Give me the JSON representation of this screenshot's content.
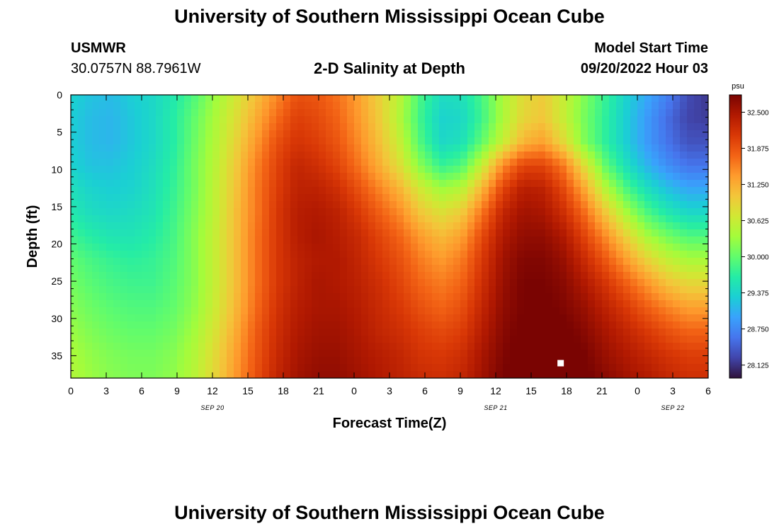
{
  "page": {
    "title_top": "University of Southern Mississippi Ocean Cube",
    "title_bottom": "University of Southern Mississippi Ocean Cube",
    "station_name": "USMWR",
    "station_coords": "30.0757N  88.7961W",
    "model_start_label": "Model Start Time",
    "model_start_value": "09/20/2022 Hour 03"
  },
  "chart_data": {
    "type": "heatmap",
    "title": "2-D Salinity at Depth",
    "xlabel": "Forecast Time(Z)",
    "ylabel": "Depth (ft)",
    "x_tick_labels": [
      "0",
      "3",
      "6",
      "9",
      "12",
      "15",
      "18",
      "21",
      "0",
      "3",
      "6",
      "9",
      "12",
      "15",
      "18",
      "21",
      "0",
      "3",
      "6"
    ],
    "x_date_labels": [
      {
        "label": "SEP 20",
        "at_tick": 4
      },
      {
        "label": "SEP 21",
        "at_tick": 12
      },
      {
        "label": "SEP 22",
        "at_tick": 17
      }
    ],
    "x_range_hours": [
      0,
      54
    ],
    "y_ticks": [
      0,
      5,
      10,
      15,
      20,
      25,
      30,
      35
    ],
    "y_range_ft": [
      0,
      38
    ],
    "y_inverted": true,
    "colorbar": {
      "unit": "psu",
      "tick_labels": [
        "32.500",
        "31.875",
        "31.250",
        "30.625",
        "30.000",
        "29.375",
        "28.750",
        "28.125"
      ],
      "range": [
        27.9,
        32.8
      ],
      "colors": [
        "#30123b",
        "#4145ab",
        "#4675ed",
        "#39a2fc",
        "#1bcfd4",
        "#24eca6",
        "#61fc6c",
        "#a4fc3b",
        "#d1e834",
        "#f3c63a",
        "#fe9b2d",
        "#f36315",
        "#d93806",
        "#b11901",
        "#7a0402"
      ]
    },
    "marker": {
      "x_hour": 41.5,
      "depth_ft": 36,
      "color": "#ffffff"
    },
    "grid": false,
    "salinity_psu": [
      [
        29.35,
        29.2,
        29.15,
        29.3,
        29.4,
        29.6,
        29.9,
        30.3,
        30.7,
        31.1,
        31.5,
        31.9,
        31.85,
        31.65,
        31.35,
        30.95,
        30.5,
        29.85,
        29.45,
        29.5,
        29.85,
        30.4,
        30.85,
        31.0,
        30.6,
        30.15,
        29.75,
        29.35,
        29.0,
        28.7,
        28.3,
        28.15
      ],
      [
        29.3,
        29.15,
        29.1,
        29.25,
        29.4,
        29.65,
        30.0,
        30.4,
        30.8,
        31.25,
        31.7,
        32.05,
        31.95,
        31.75,
        31.4,
        31.0,
        30.45,
        29.8,
        29.35,
        29.4,
        29.8,
        30.4,
        30.9,
        31.05,
        30.6,
        30.1,
        29.7,
        29.3,
        28.9,
        28.55,
        28.25,
        28.2
      ],
      [
        29.3,
        29.15,
        29.1,
        29.25,
        29.4,
        29.65,
        30.05,
        30.45,
        30.9,
        31.4,
        31.9,
        32.15,
        32.05,
        31.85,
        31.5,
        31.1,
        30.6,
        29.9,
        29.4,
        29.5,
        30.0,
        30.6,
        31.2,
        31.35,
        30.85,
        30.15,
        29.7,
        29.3,
        28.9,
        28.6,
        28.35,
        28.35
      ],
      [
        29.35,
        29.2,
        29.2,
        29.3,
        29.45,
        29.7,
        30.1,
        30.5,
        31.0,
        31.55,
        32.0,
        32.3,
        32.2,
        32.0,
        31.65,
        31.25,
        30.8,
        30.2,
        29.75,
        29.9,
        30.6,
        31.5,
        32.0,
        32.0,
        31.6,
        30.8,
        30.0,
        29.5,
        29.1,
        28.8,
        28.6,
        28.6
      ],
      [
        29.5,
        29.35,
        29.3,
        29.35,
        29.5,
        29.75,
        30.1,
        30.55,
        31.05,
        31.6,
        32.05,
        32.35,
        32.35,
        32.2,
        31.9,
        31.55,
        31.2,
        30.7,
        30.35,
        30.5,
        31.2,
        32.0,
        32.4,
        32.35,
        31.95,
        31.3,
        30.5,
        29.9,
        29.5,
        29.2,
        29.0,
        29.0
      ],
      [
        29.6,
        29.45,
        29.4,
        29.45,
        29.55,
        29.8,
        30.15,
        30.55,
        31.1,
        31.6,
        32.1,
        32.4,
        32.45,
        32.35,
        32.1,
        31.8,
        31.5,
        31.05,
        30.8,
        31.0,
        31.65,
        32.3,
        32.55,
        32.5,
        32.2,
        31.7,
        31.05,
        30.4,
        29.9,
        29.6,
        29.4,
        29.4
      ],
      [
        29.8,
        29.65,
        29.55,
        29.55,
        29.65,
        29.85,
        30.2,
        30.6,
        31.1,
        31.65,
        32.1,
        32.4,
        32.5,
        32.4,
        32.25,
        32.0,
        31.75,
        31.4,
        31.15,
        31.35,
        31.95,
        32.45,
        32.65,
        32.65,
        32.45,
        32.0,
        31.5,
        30.95,
        30.4,
        30.1,
        29.9,
        29.9
      ],
      [
        30.0,
        29.85,
        29.75,
        29.7,
        29.75,
        29.9,
        30.2,
        30.6,
        31.1,
        31.65,
        32.1,
        32.35,
        32.45,
        32.45,
        32.3,
        32.1,
        31.9,
        31.6,
        31.4,
        31.6,
        32.1,
        32.55,
        32.75,
        32.75,
        32.6,
        32.25,
        31.85,
        31.4,
        30.95,
        30.6,
        30.4,
        30.4
      ],
      [
        30.1,
        29.95,
        29.85,
        29.8,
        29.8,
        29.95,
        30.2,
        30.6,
        31.1,
        31.65,
        32.1,
        32.35,
        32.5,
        32.45,
        32.35,
        32.2,
        32.0,
        31.75,
        31.6,
        31.75,
        32.2,
        32.6,
        32.8,
        32.8,
        32.7,
        32.45,
        32.15,
        31.8,
        31.45,
        31.1,
        30.9,
        30.9
      ],
      [
        30.2,
        30.05,
        29.95,
        29.9,
        29.9,
        30.0,
        30.25,
        30.65,
        31.15,
        31.7,
        32.15,
        32.4,
        32.5,
        32.5,
        32.4,
        32.25,
        32.1,
        31.9,
        31.75,
        31.9,
        32.3,
        32.65,
        32.8,
        32.85,
        32.75,
        32.6,
        32.35,
        32.1,
        31.8,
        31.55,
        31.35,
        31.35
      ],
      [
        30.3,
        30.15,
        30.05,
        30.0,
        30.0,
        30.1,
        30.35,
        30.75,
        31.25,
        31.8,
        32.2,
        32.45,
        32.55,
        32.55,
        32.45,
        32.3,
        32.2,
        32.05,
        31.95,
        32.05,
        32.4,
        32.7,
        32.85,
        32.9,
        32.85,
        32.7,
        32.5,
        32.3,
        32.1,
        31.9,
        31.75,
        31.75
      ],
      [
        30.4,
        30.25,
        30.15,
        30.1,
        30.1,
        30.2,
        30.45,
        30.85,
        31.35,
        31.85,
        32.25,
        32.5,
        32.6,
        32.6,
        32.5,
        32.4,
        32.3,
        32.15,
        32.1,
        32.2,
        32.5,
        32.75,
        32.9,
        32.95,
        32.9,
        32.8,
        32.6,
        32.45,
        32.3,
        32.15,
        32.05,
        32.05
      ],
      [
        30.45,
        30.3,
        30.2,
        30.15,
        30.15,
        30.25,
        30.5,
        30.9,
        31.4,
        31.9,
        32.3,
        32.55,
        32.65,
        32.65,
        32.55,
        32.45,
        32.35,
        32.25,
        32.2,
        32.3,
        32.55,
        32.8,
        32.95,
        33.0,
        32.95,
        32.85,
        32.7,
        32.55,
        32.45,
        32.3,
        32.2,
        32.2
      ]
    ]
  }
}
